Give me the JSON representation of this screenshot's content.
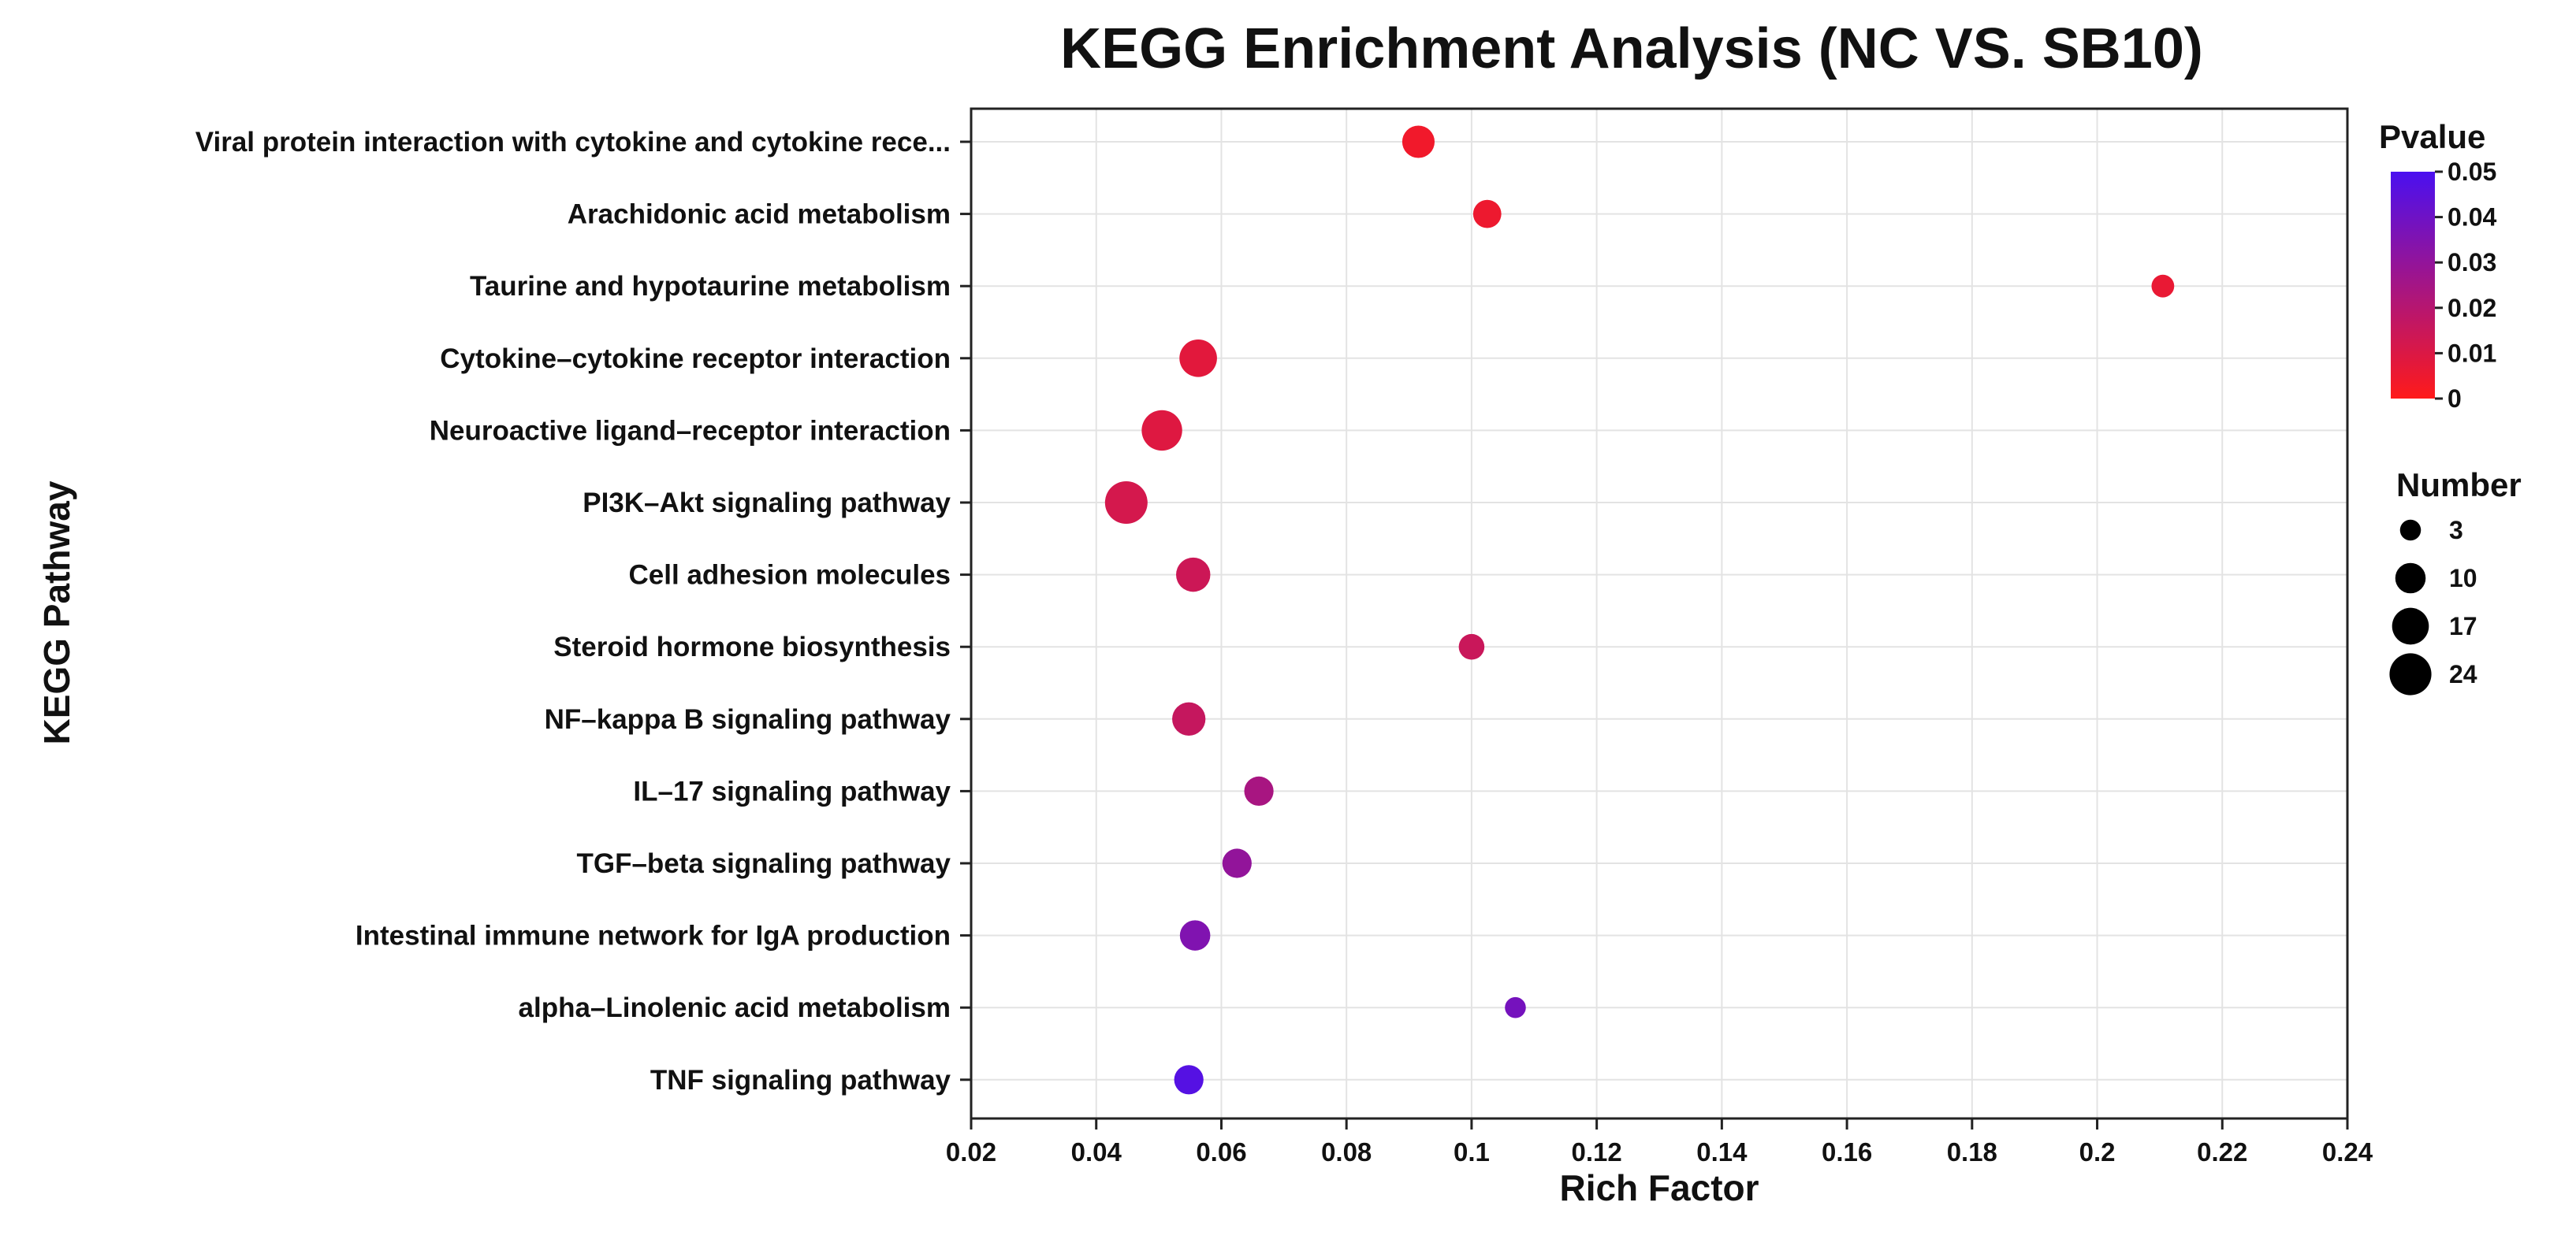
{
  "chart_data": {
    "type": "scatter",
    "title": "KEGG Enrichment Analysis (NC VS. SB10)",
    "xlabel": "Rich Factor",
    "ylabel": "KEGG Pathway",
    "xlim": [
      0.02,
      0.24
    ],
    "xticks": [
      "0.02",
      "0.04",
      "0.06",
      "0.08",
      "0.1",
      "0.12",
      "0.14",
      "0.16",
      "0.18",
      "0.2",
      "0.22",
      "0.24"
    ],
    "grid": true,
    "categories": [
      "Viral protein interaction with cytokine and cytokine rece...",
      "Arachidonic acid metabolism",
      "Taurine and hypotaurine metabolism",
      "Cytokine–cytokine receptor interaction",
      "Neuroactive ligand–receptor interaction",
      "PI3K–Akt signaling pathway",
      "Cell adhesion molecules",
      "Steroid hormone biosynthesis",
      "NF–kappa B signaling pathway",
      "IL–17 signaling pathway",
      "TGF–beta signaling pathway",
      "Intestinal immune network for IgA production",
      "alpha–Linolenic acid metabolism",
      "TNF signaling pathway"
    ],
    "points": [
      {
        "pathway": "Viral protein interaction with cytokine and cytokine rece...",
        "rich_factor": 0.0915,
        "number": 12,
        "pvalue": 0.004
      },
      {
        "pathway": "Arachidonic acid metabolism",
        "rich_factor": 0.1025,
        "number": 8,
        "pvalue": 0.005
      },
      {
        "pathway": "Taurine and hypotaurine metabolism",
        "rich_factor": 0.2105,
        "number": 4,
        "pvalue": 0.006
      },
      {
        "pathway": "Cytokine–cytokine receptor interaction",
        "rich_factor": 0.0563,
        "number": 18,
        "pvalue": 0.008
      },
      {
        "pathway": "Neuroactive ligand–receptor interaction",
        "rich_factor": 0.0505,
        "number": 22,
        "pvalue": 0.009
      },
      {
        "pathway": "PI3K–Akt signaling pathway",
        "rich_factor": 0.0448,
        "number": 25,
        "pvalue": 0.012
      },
      {
        "pathway": "Cell adhesion molecules",
        "rich_factor": 0.0555,
        "number": 14,
        "pvalue": 0.014
      },
      {
        "pathway": "Steroid hormone biosynthesis",
        "rich_factor": 0.1,
        "number": 6,
        "pvalue": 0.015
      },
      {
        "pathway": "NF–kappa B signaling pathway",
        "rich_factor": 0.0548,
        "number": 13,
        "pvalue": 0.016
      },
      {
        "pathway": "IL–17 signaling pathway",
        "rich_factor": 0.066,
        "number": 9,
        "pvalue": 0.024
      },
      {
        "pathway": "TGF–beta signaling pathway",
        "rich_factor": 0.0625,
        "number": 9,
        "pvalue": 0.03
      },
      {
        "pathway": "Intestinal immune network for IgA production",
        "rich_factor": 0.0558,
        "number": 10,
        "pvalue": 0.035
      },
      {
        "pathway": "alpha–Linolenic acid metabolism",
        "rich_factor": 0.107,
        "number": 3,
        "pvalue": 0.038
      },
      {
        "pathway": "TNF signaling pathway",
        "rich_factor": 0.0548,
        "number": 9,
        "pvalue": 0.047
      }
    ],
    "color_legend": {
      "title": "Pvalue",
      "range": [
        0,
        0.05
      ],
      "low_color": "#ff1a1a",
      "high_color": "#4a10f0",
      "ticks": [
        "0",
        "0.01",
        "0.02",
        "0.03",
        "0.04",
        "0.05"
      ]
    },
    "size_legend": {
      "title": "Number",
      "values": [
        3,
        10,
        17,
        24
      ],
      "labels": [
        "3",
        "10",
        "17",
        "24"
      ]
    }
  }
}
